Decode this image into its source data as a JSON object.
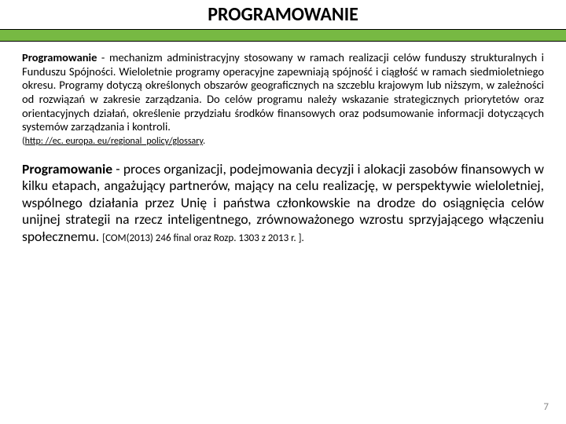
{
  "colors": {
    "accent": "#77b943",
    "text": "#000000",
    "background": "#ffffff",
    "pagenum": "#8a8a8a"
  },
  "title": "PROGRAMOWANIE",
  "para1": {
    "lead": "Programowanie",
    "rest": " - mechanizm administracyjny stosowany w ramach realizacji celów funduszy strukturalnych i Funduszu Spójności.\nWieloletnie programy operacyjne zapewniają spójność i ciągłość w ramach siedmioletniego okresu.\nProgramy dotyczą określonych obszarów geograficznych na szczeblu krajowym lub niższym, w zależności od rozwiązań w zakresie zarządzania.\nDo celów programu należy wskazanie strategicznych priorytetów oraz orientacyjnych działań, określenie przydziału środków finansowych oraz podsumowanie informacji dotyczących systemów zarządzania i kontroli."
  },
  "source": {
    "prefix": "(",
    "link_text": "http: //ec. europa. eu/regional_policy/glossary",
    "link_href": "http://ec.europa.eu/regional_policy/glossary",
    "suffix": "."
  },
  "para2": {
    "lead": "Programowanie",
    "rest": " - proces organizacji, podejmowania decyzji i alokacji zasobów finansowych w kilku etapach, angażujący partnerów, mający na celu realizację, w perspektywie wieloletniej, wspólnego działania przez Unię i państwa członkowskie na drodze do osiągnięcia celów unijnej strategii na rzecz inteligentnego, zrównoważonego wzrostu sprzyjającego włączeniu społecznemu. ",
    "cite": "[COM(2013) 246 final oraz Rozp. 1303 z 2013 r. ]."
  },
  "page_number": "7"
}
